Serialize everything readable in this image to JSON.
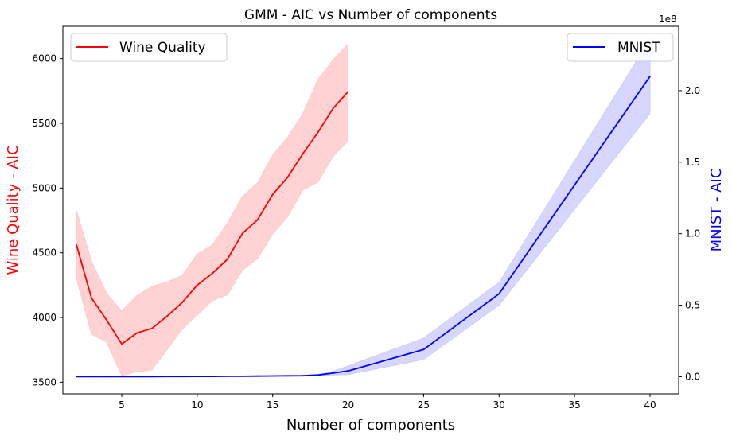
{
  "chart_data": {
    "type": "line",
    "title": "GMM - AIC vs Number of components",
    "xlabel": "Number of components",
    "ylabel_left": "Wine Quality - AIC",
    "ylabel_right": "MNIST - AIC",
    "right_axis_offset_text": "1e8",
    "xlim": [
      1.1,
      41.9
    ],
    "ylim_left": [
      3410,
      6250
    ],
    "ylim_right": [
      -0.12,
      2.45
    ],
    "x_ticks": [
      5,
      10,
      15,
      20,
      25,
      30,
      35,
      40
    ],
    "y_ticks_left": [
      3500,
      4000,
      4500,
      5000,
      5500,
      6000
    ],
    "y_ticks_right": [
      0.0,
      0.5,
      1.0,
      1.5,
      2.0
    ],
    "series": [
      {
        "name": "Wine Quality",
        "axis": "left",
        "color": "#ff0000",
        "band_color": "#ffc4c4",
        "legend_position": "top-left",
        "x": [
          2,
          3,
          4,
          5,
          6,
          7,
          8,
          9,
          10,
          11,
          12,
          13,
          14,
          15,
          16,
          17,
          18,
          19,
          20
        ],
        "y": [
          4560,
          4150,
          3980,
          3795,
          3880,
          3915,
          4010,
          4115,
          4250,
          4340,
          4450,
          4650,
          4755,
          4950,
          5085,
          5265,
          5430,
          5615,
          5745
        ],
        "lower": [
          4300,
          3870,
          3810,
          3550,
          3580,
          3595,
          3750,
          3910,
          4020,
          4130,
          4175,
          4365,
          4455,
          4645,
          4780,
          4985,
          5045,
          5245,
          5365
        ],
        "upper": [
          4825,
          4435,
          4185,
          4050,
          4170,
          4240,
          4275,
          4325,
          4490,
          4560,
          4730,
          4935,
          5040,
          5255,
          5395,
          5575,
          5840,
          5990,
          6115
        ]
      },
      {
        "name": "MNIST",
        "axis": "right",
        "color": "#0000ff",
        "band_color": "#c8c8ff",
        "legend_position": "top-right",
        "x": [
          2,
          3,
          4,
          5,
          6,
          7,
          8,
          9,
          10,
          11,
          12,
          13,
          14,
          15,
          16,
          17,
          18,
          19,
          20,
          25,
          30,
          40
        ],
        "y": [
          0.0,
          0.0,
          0.0,
          0.0,
          0.0,
          0.0,
          0.001,
          0.001,
          0.002,
          0.002,
          0.003,
          0.003,
          0.004,
          0.005,
          0.006,
          0.007,
          0.012,
          0.025,
          0.04,
          0.19,
          0.58,
          2.1
        ],
        "lower": [
          0.0,
          0.0,
          0.0,
          0.0,
          0.0,
          0.0,
          0.0,
          0.0,
          0.001,
          0.001,
          0.002,
          0.002,
          0.003,
          0.004,
          0.005,
          0.006,
          0.008,
          0.012,
          0.015,
          0.12,
          0.5,
          1.84
        ],
        "upper": [
          0.0,
          0.0,
          0.0,
          0.0,
          0.0,
          0.0,
          0.002,
          0.002,
          0.003,
          0.003,
          0.004,
          0.004,
          0.005,
          0.006,
          0.007,
          0.009,
          0.016,
          0.038,
          0.075,
          0.27,
          0.66,
          2.36
        ]
      }
    ]
  }
}
